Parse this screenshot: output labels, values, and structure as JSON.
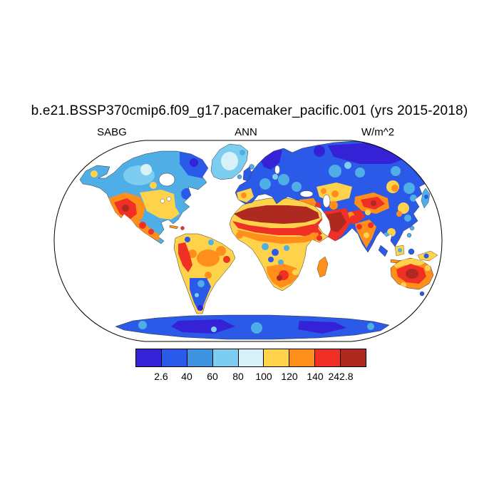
{
  "title": "b.e21.BSSP370cmip6.f09_g17.pacemaker_pacific.001 (yrs 2015-2018)",
  "header": {
    "left_label": "SABG",
    "center_label": "ANN",
    "right_label": "W/m^2"
  },
  "chart_data": {
    "type": "heatmap",
    "subtype": "global-map-filled-contour",
    "title": "b.e21.BSSP370cmip6.f09_g17.pacemaker_pacific.001 (yrs 2015-2018)",
    "variable": "SABG",
    "aggregation": "ANN",
    "units": "W/m^2",
    "projection": "robinson",
    "ocean": "masked white (land-only field)",
    "data_min": 2.6,
    "data_max": 242.8,
    "contour_levels": [
      2.6,
      40,
      60,
      80,
      100,
      120,
      140,
      242.8
    ],
    "colorbar": {
      "orientation": "horizontal",
      "tick_labels": [
        "2.6",
        "40",
        "60",
        "80",
        "100",
        "120",
        "140",
        "242.8"
      ],
      "colors": [
        "#3522D6",
        "#2B59E8",
        "#3E93E0",
        "#7CCDF0",
        "#D8F0F8",
        "#FFD24C",
        "#FF8E1A",
        "#F03024",
        "#AE2A20"
      ]
    },
    "pattern_summary": {
      "high_values": [
        "Sahara",
        "Arabian Peninsula",
        "interior Australia",
        "SW United States and Mexico",
        "Tibet/Central Asia deserts",
        "Kalahari/Namibia"
      ],
      "low_values": [
        "Siberia",
        "northern Canada",
        "Scandinavia",
        "Antarctica",
        "Patagonia"
      ]
    }
  }
}
